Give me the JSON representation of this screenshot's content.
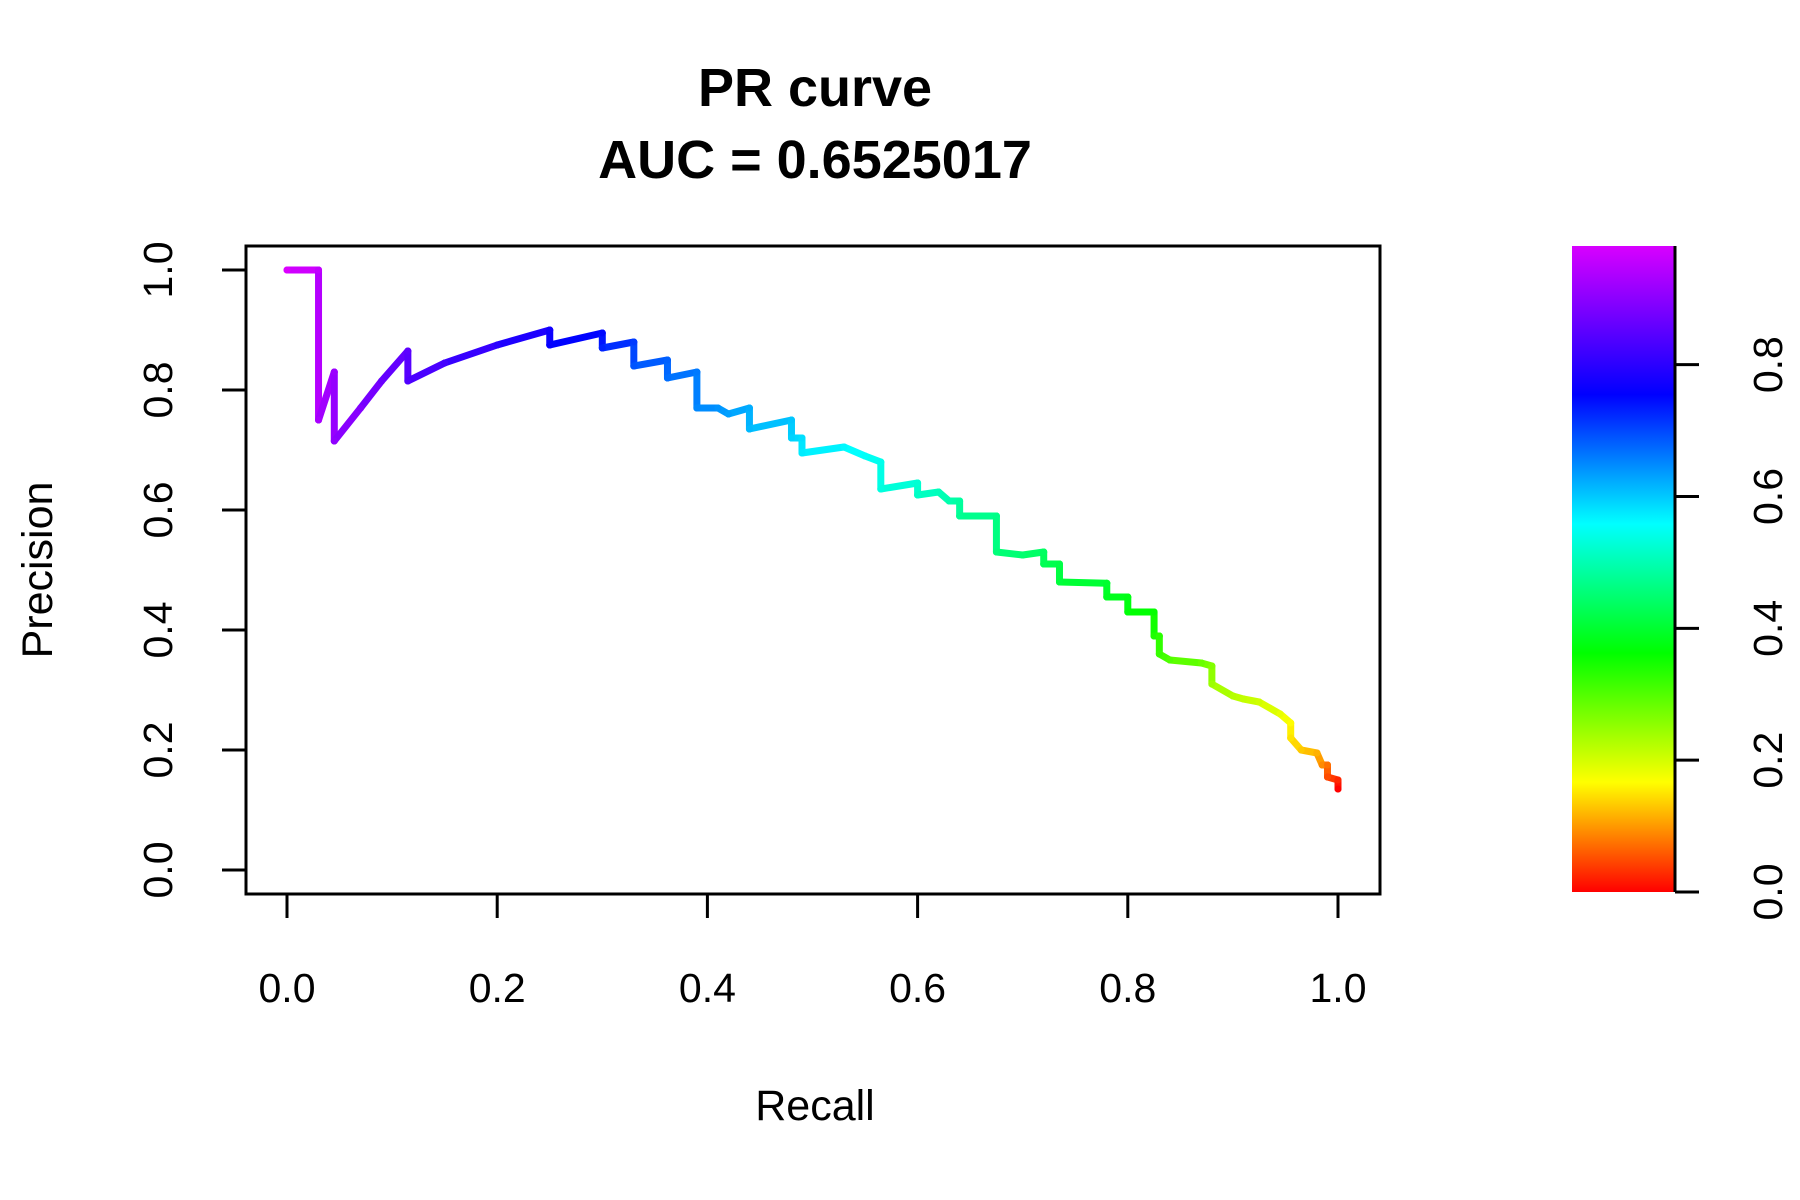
{
  "chart_data": {
    "type": "line",
    "title": "PR curve",
    "subtitle": "AUC = 0.6525017",
    "xlabel": "Recall",
    "ylabel": "Precision",
    "xlim": [
      0,
      1
    ],
    "ylim": [
      0,
      1
    ],
    "x_ticks": [
      "0.0",
      "0.2",
      "0.4",
      "0.6",
      "0.8",
      "1.0"
    ],
    "y_ticks": [
      "0.0",
      "0.2",
      "0.4",
      "0.6",
      "0.8",
      "1.0"
    ],
    "grid": false,
    "colorbar": {
      "colormap": "rainbow (red to magenta)",
      "range": [
        0,
        0.98
      ],
      "ticks": [
        "0.0",
        "0.2",
        "0.4",
        "0.6",
        "0.8"
      ],
      "placement": "right"
    },
    "series": [
      {
        "points": [
          [
            0.0,
            1.0,
            0.98
          ],
          [
            0.03,
            1.0,
            0.96
          ],
          [
            0.03,
            0.75,
            0.94
          ],
          [
            0.045,
            0.83,
            0.93
          ],
          [
            0.045,
            0.715,
            0.92
          ],
          [
            0.07,
            0.77,
            0.91
          ],
          [
            0.09,
            0.815,
            0.89
          ],
          [
            0.115,
            0.865,
            0.88
          ],
          [
            0.115,
            0.815,
            0.87
          ],
          [
            0.15,
            0.845,
            0.86
          ],
          [
            0.2,
            0.875,
            0.84
          ],
          [
            0.25,
            0.9,
            0.82
          ],
          [
            0.25,
            0.875,
            0.81
          ],
          [
            0.3,
            0.895,
            0.8
          ],
          [
            0.3,
            0.87,
            0.78
          ],
          [
            0.33,
            0.88,
            0.76
          ],
          [
            0.33,
            0.84,
            0.74
          ],
          [
            0.362,
            0.85,
            0.73
          ],
          [
            0.362,
            0.82,
            0.72
          ],
          [
            0.39,
            0.83,
            0.71
          ],
          [
            0.39,
            0.77,
            0.7
          ],
          [
            0.41,
            0.77,
            0.69
          ],
          [
            0.42,
            0.76,
            0.68
          ],
          [
            0.44,
            0.77,
            0.67
          ],
          [
            0.44,
            0.735,
            0.66
          ],
          [
            0.48,
            0.75,
            0.65
          ],
          [
            0.48,
            0.72,
            0.64
          ],
          [
            0.49,
            0.72,
            0.63
          ],
          [
            0.49,
            0.695,
            0.62
          ],
          [
            0.53,
            0.705,
            0.61
          ],
          [
            0.55,
            0.69,
            0.6
          ],
          [
            0.565,
            0.68,
            0.59
          ],
          [
            0.565,
            0.635,
            0.58
          ],
          [
            0.6,
            0.645,
            0.57
          ],
          [
            0.6,
            0.625,
            0.56
          ],
          [
            0.62,
            0.63,
            0.55
          ],
          [
            0.63,
            0.615,
            0.54
          ],
          [
            0.64,
            0.615,
            0.53
          ],
          [
            0.64,
            0.59,
            0.52
          ],
          [
            0.675,
            0.59,
            0.51
          ],
          [
            0.675,
            0.53,
            0.5
          ],
          [
            0.7,
            0.525,
            0.49
          ],
          [
            0.72,
            0.53,
            0.48
          ],
          [
            0.72,
            0.51,
            0.47
          ],
          [
            0.735,
            0.51,
            0.46
          ],
          [
            0.735,
            0.48,
            0.45
          ],
          [
            0.78,
            0.478,
            0.44
          ],
          [
            0.78,
            0.455,
            0.43
          ],
          [
            0.8,
            0.455,
            0.42
          ],
          [
            0.8,
            0.43,
            0.41
          ],
          [
            0.825,
            0.43,
            0.4
          ],
          [
            0.825,
            0.39,
            0.38
          ],
          [
            0.83,
            0.39,
            0.37
          ],
          [
            0.83,
            0.36,
            0.36
          ],
          [
            0.84,
            0.35,
            0.34
          ],
          [
            0.87,
            0.345,
            0.32
          ],
          [
            0.88,
            0.34,
            0.3
          ],
          [
            0.88,
            0.31,
            0.28
          ],
          [
            0.9,
            0.29,
            0.26
          ],
          [
            0.91,
            0.285,
            0.25
          ],
          [
            0.925,
            0.28,
            0.24
          ],
          [
            0.945,
            0.26,
            0.22
          ],
          [
            0.955,
            0.245,
            0.2
          ],
          [
            0.955,
            0.22,
            0.18
          ],
          [
            0.965,
            0.2,
            0.16
          ],
          [
            0.98,
            0.195,
            0.14
          ],
          [
            0.985,
            0.175,
            0.11
          ],
          [
            0.99,
            0.175,
            0.09
          ],
          [
            0.99,
            0.155,
            0.06
          ],
          [
            1.0,
            0.15,
            0.03
          ],
          [
            1.0,
            0.135,
            0.0
          ]
        ],
        "point_fields": [
          "recall",
          "precision",
          "threshold"
        ]
      }
    ]
  }
}
